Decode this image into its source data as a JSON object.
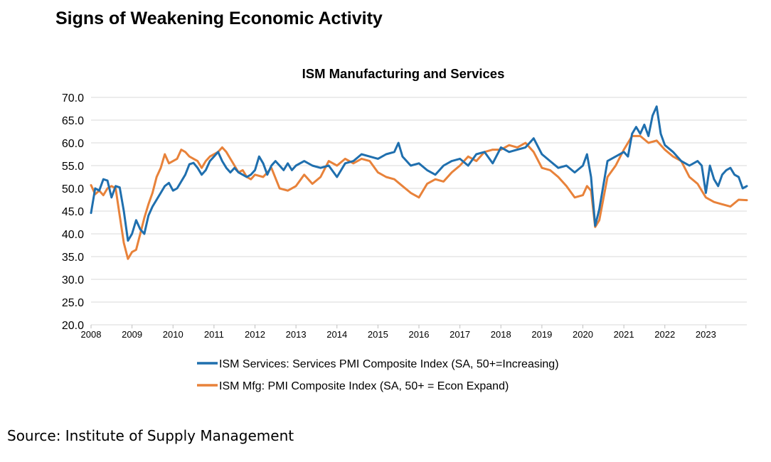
{
  "page": {
    "title": "Signs of Weakening Economic Activity",
    "source": "Source: Institute of Supply Management"
  },
  "chart_data": {
    "type": "line",
    "title": "ISM Manufacturing and Services",
    "xlabel": "",
    "ylabel": "",
    "x_range": [
      2008,
      2024
    ],
    "ylim": [
      20,
      70
    ],
    "grid": true,
    "legend_position": "bottom",
    "x_ticks": [
      "2008",
      "2009",
      "2010",
      "2011",
      "2012",
      "2013",
      "2014",
      "2015",
      "2016",
      "2017",
      "2018",
      "2019",
      "2020",
      "2021",
      "2022",
      "2023"
    ],
    "y_ticks": [
      "70.0",
      "65.0",
      "60.0",
      "55.0",
      "50.0",
      "45.0",
      "40.0",
      "35.0",
      "30.0",
      "25.0",
      "20.0"
    ],
    "series": [
      {
        "name": "ISM Services: Services PMI Composite Index (SA, 50+=Increasing)",
        "color": "#1f6fae",
        "x": [
          2008.0,
          2008.1,
          2008.2,
          2008.3,
          2008.4,
          2008.5,
          2008.6,
          2008.7,
          2008.8,
          2008.9,
          2009.0,
          2009.1,
          2009.2,
          2009.3,
          2009.4,
          2009.5,
          2009.6,
          2009.7,
          2009.8,
          2009.9,
          2010.0,
          2010.1,
          2010.2,
          2010.3,
          2010.4,
          2010.5,
          2010.6,
          2010.7,
          2010.8,
          2010.9,
          2011.0,
          2011.1,
          2011.2,
          2011.3,
          2011.4,
          2011.5,
          2011.6,
          2011.7,
          2011.8,
          2011.9,
          2012.0,
          2012.1,
          2012.2,
          2012.3,
          2012.4,
          2012.5,
          2012.6,
          2012.7,
          2012.8,
          2012.9,
          2013.0,
          2013.2,
          2013.4,
          2013.6,
          2013.8,
          2014.0,
          2014.2,
          2014.4,
          2014.6,
          2014.8,
          2015.0,
          2015.2,
          2015.4,
          2015.5,
          2015.6,
          2015.8,
          2016.0,
          2016.2,
          2016.4,
          2016.6,
          2016.8,
          2017.0,
          2017.2,
          2017.4,
          2017.6,
          2017.8,
          2018.0,
          2018.2,
          2018.4,
          2018.6,
          2018.7,
          2018.8,
          2019.0,
          2019.2,
          2019.4,
          2019.6,
          2019.8,
          2020.0,
          2020.1,
          2020.2,
          2020.3,
          2020.4,
          2020.6,
          2020.8,
          2021.0,
          2021.1,
          2021.2,
          2021.3,
          2021.4,
          2021.5,
          2021.6,
          2021.7,
          2021.8,
          2021.9,
          2022.0,
          2022.2,
          2022.4,
          2022.6,
          2022.8,
          2022.9,
          2023.0,
          2023.1,
          2023.2,
          2023.3,
          2023.4,
          2023.5,
          2023.6,
          2023.7,
          2023.8,
          2023.9,
          2024.0
        ],
        "values": [
          44.6,
          50.0,
          49.5,
          52.0,
          51.7,
          48.0,
          50.5,
          50.2,
          45.0,
          38.5,
          40.0,
          43.0,
          41.0,
          40.0,
          44.0,
          46.0,
          47.5,
          49.0,
          50.5,
          51.2,
          49.5,
          50.0,
          51.5,
          53.0,
          55.3,
          55.6,
          54.5,
          53.0,
          54.0,
          56.0,
          57.0,
          58.0,
          56.0,
          54.5,
          53.5,
          54.5,
          53.5,
          53.0,
          52.5,
          53.0,
          54.0,
          57.0,
          55.5,
          53.0,
          55.0,
          56.0,
          55.0,
          54.0,
          55.5,
          54.0,
          55.0,
          56.0,
          55.0,
          54.5,
          55.0,
          52.5,
          55.5,
          56.0,
          57.5,
          57.0,
          56.5,
          57.5,
          58.0,
          60.0,
          57.0,
          55.0,
          55.5,
          54.0,
          53.0,
          55.0,
          56.0,
          56.5,
          55.0,
          57.5,
          58.0,
          55.5,
          59.0,
          58.0,
          58.5,
          59.0,
          60.0,
          61.0,
          57.5,
          56.0,
          54.5,
          55.0,
          53.5,
          55.0,
          57.5,
          52.5,
          41.8,
          45.4,
          56.0,
          57.0,
          58.0,
          57.0,
          62.0,
          63.5,
          62.0,
          64.0,
          61.5,
          66.0,
          68.0,
          62.0,
          59.5,
          58.0,
          56.0,
          55.0,
          56.0,
          55.0,
          49.0,
          55.0,
          52.0,
          50.5,
          53.0,
          54.0,
          54.5,
          53.0,
          52.5,
          50.0,
          50.5
        ]
      },
      {
        "name": "ISM Mfg: PMI Composite Index (SA, 50+ = Econ Expand)",
        "color": "#e8823a",
        "x": [
          2008.0,
          2008.1,
          2008.2,
          2008.3,
          2008.4,
          2008.5,
          2008.6,
          2008.7,
          2008.8,
          2008.9,
          2009.0,
          2009.1,
          2009.2,
          2009.3,
          2009.4,
          2009.5,
          2009.6,
          2009.7,
          2009.8,
          2009.9,
          2010.0,
          2010.1,
          2010.2,
          2010.3,
          2010.4,
          2010.5,
          2010.6,
          2010.7,
          2010.8,
          2010.9,
          2011.0,
          2011.1,
          2011.2,
          2011.3,
          2011.4,
          2011.5,
          2011.6,
          2011.7,
          2011.8,
          2011.9,
          2012.0,
          2012.2,
          2012.4,
          2012.6,
          2012.8,
          2013.0,
          2013.2,
          2013.4,
          2013.6,
          2013.8,
          2014.0,
          2014.2,
          2014.4,
          2014.6,
          2014.8,
          2015.0,
          2015.2,
          2015.4,
          2015.6,
          2015.8,
          2016.0,
          2016.2,
          2016.4,
          2016.6,
          2016.8,
          2017.0,
          2017.2,
          2017.4,
          2017.6,
          2017.8,
          2018.0,
          2018.2,
          2018.4,
          2018.6,
          2018.8,
          2019.0,
          2019.2,
          2019.4,
          2019.6,
          2019.8,
          2020.0,
          2020.1,
          2020.2,
          2020.3,
          2020.4,
          2020.6,
          2020.8,
          2021.0,
          2021.1,
          2021.2,
          2021.4,
          2021.6,
          2021.8,
          2022.0,
          2022.2,
          2022.4,
          2022.6,
          2022.8,
          2023.0,
          2023.2,
          2023.4,
          2023.6,
          2023.8,
          2024.0
        ],
        "values": [
          50.7,
          48.7,
          49.5,
          48.5,
          50.0,
          50.5,
          50.0,
          44.0,
          38.0,
          34.5,
          36.0,
          36.5,
          40.0,
          43.5,
          46.5,
          49.0,
          52.5,
          54.5,
          57.5,
          55.5,
          56.0,
          56.5,
          58.5,
          58.0,
          57.0,
          56.5,
          56.0,
          54.5,
          56.0,
          57.0,
          57.5,
          58.0,
          59.0,
          58.0,
          56.5,
          55.0,
          53.5,
          54.0,
          52.5,
          52.0,
          53.0,
          52.5,
          54.5,
          50.0,
          49.5,
          50.5,
          53.0,
          51.0,
          52.5,
          56.0,
          55.0,
          56.5,
          55.5,
          56.5,
          56.0,
          53.5,
          52.5,
          52.0,
          50.5,
          49.0,
          48.0,
          51.0,
          52.0,
          51.5,
          53.5,
          55.0,
          57.0,
          56.0,
          58.0,
          58.5,
          58.5,
          59.5,
          59.0,
          60.0,
          58.0,
          54.5,
          54.0,
          52.5,
          50.5,
          48.0,
          48.5,
          50.5,
          49.5,
          41.5,
          43.0,
          52.5,
          55.0,
          58.5,
          60.0,
          61.5,
          61.5,
          60.0,
          60.5,
          58.5,
          57.0,
          56.0,
          52.5,
          51.0,
          48.0,
          47.0,
          46.5,
          46.0,
          47.5,
          47.4
        ]
      }
    ]
  }
}
